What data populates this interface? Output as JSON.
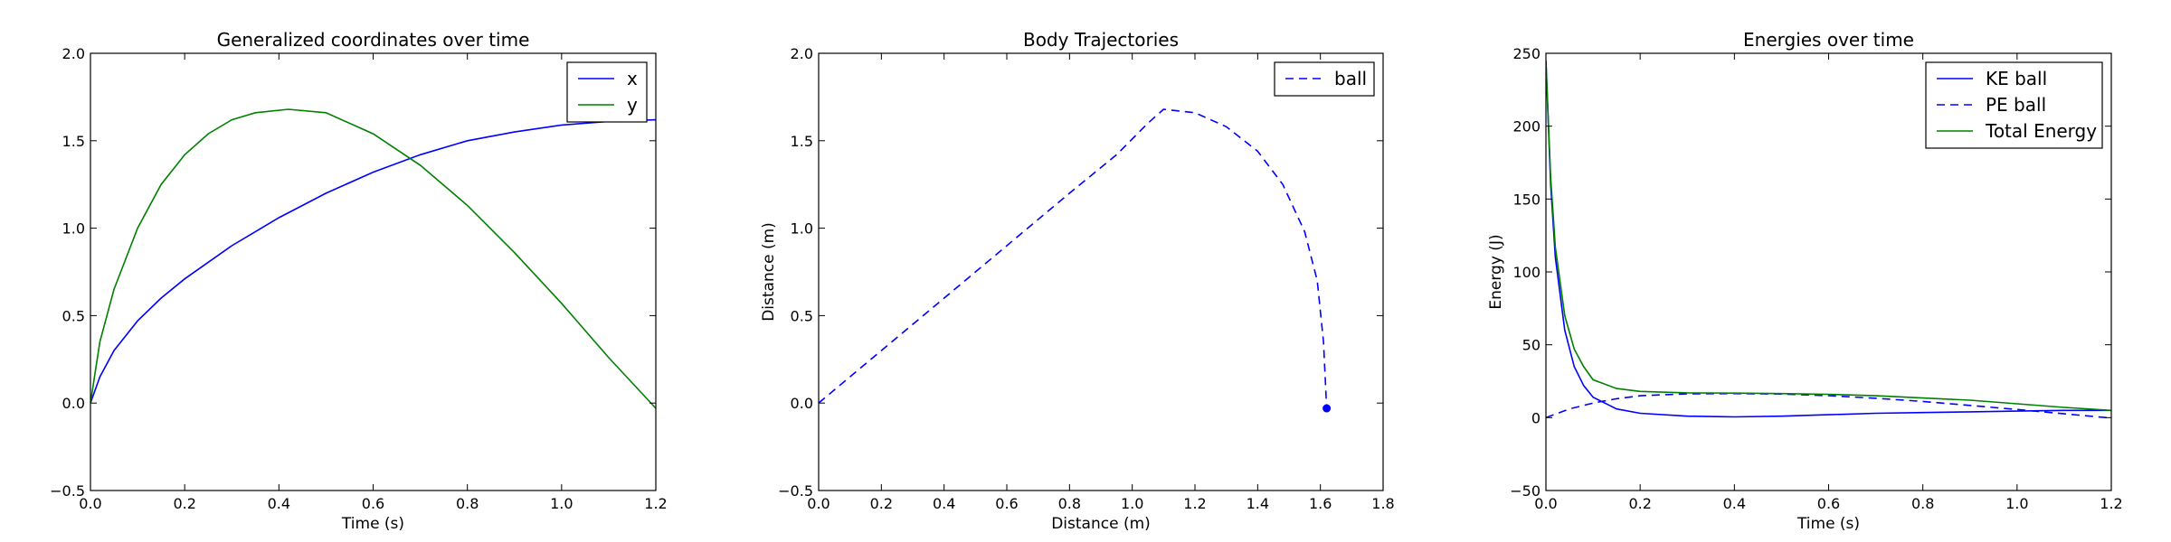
{
  "chart_data": [
    {
      "type": "line",
      "title": "Generalized coordinates over time",
      "xlabel": "Time (s)",
      "ylabel": "",
      "xlim": [
        0.0,
        1.2
      ],
      "ylim": [
        -0.5,
        2.0
      ],
      "xticks": [
        "0.0",
        "0.2",
        "0.4",
        "0.6",
        "0.8",
        "1.0",
        "1.2"
      ],
      "yticks": [
        "−0.5",
        "0.0",
        "0.5",
        "1.0",
        "1.5",
        "2.0"
      ],
      "legend_position": "top-right",
      "grid": false,
      "series": [
        {
          "name": "x",
          "color": "#0000ff",
          "style": "solid",
          "x": [
            0.0,
            0.02,
            0.05,
            0.1,
            0.15,
            0.2,
            0.3,
            0.4,
            0.5,
            0.6,
            0.7,
            0.8,
            0.9,
            1.0,
            1.1,
            1.2
          ],
          "y": [
            0.0,
            0.15,
            0.3,
            0.47,
            0.6,
            0.71,
            0.9,
            1.06,
            1.2,
            1.32,
            1.42,
            1.5,
            1.55,
            1.59,
            1.61,
            1.62
          ]
        },
        {
          "name": "y",
          "color": "#008000",
          "style": "solid",
          "x": [
            0.0,
            0.02,
            0.05,
            0.1,
            0.15,
            0.2,
            0.25,
            0.3,
            0.35,
            0.42,
            0.5,
            0.6,
            0.7,
            0.8,
            0.9,
            1.0,
            1.1,
            1.2
          ],
          "y": [
            0.0,
            0.35,
            0.65,
            1.0,
            1.25,
            1.42,
            1.54,
            1.62,
            1.66,
            1.68,
            1.66,
            1.54,
            1.36,
            1.13,
            0.86,
            0.57,
            0.26,
            -0.03
          ]
        }
      ]
    },
    {
      "type": "line",
      "title": "Body Trajectories",
      "xlabel": "Distance (m)",
      "ylabel": "Distance (m)",
      "xlim": [
        0.0,
        1.8
      ],
      "ylim": [
        -0.5,
        2.0
      ],
      "xticks": [
        "0.0",
        "0.2",
        "0.4",
        "0.6",
        "0.8",
        "1.0",
        "1.2",
        "1.4",
        "1.6",
        "1.8"
      ],
      "yticks": [
        "−0.5",
        "0.0",
        "0.5",
        "1.0",
        "1.5",
        "2.0"
      ],
      "legend_position": "top-right",
      "grid": false,
      "series": [
        {
          "name": "ball",
          "color": "#0000ff",
          "style": "dashed",
          "x": [
            0.0,
            0.2,
            0.4,
            0.6,
            0.8,
            0.95,
            1.05,
            1.1,
            1.2,
            1.3,
            1.4,
            1.48,
            1.55,
            1.59,
            1.61,
            1.62
          ],
          "y": [
            0.0,
            0.3,
            0.6,
            0.9,
            1.2,
            1.42,
            1.6,
            1.68,
            1.66,
            1.58,
            1.44,
            1.25,
            0.98,
            0.7,
            0.35,
            -0.03
          ]
        }
      ],
      "end_marker": {
        "x": 1.62,
        "y": -0.03,
        "color": "#0000ff"
      }
    },
    {
      "type": "line",
      "title": "Energies over time",
      "xlabel": "Time (s)",
      "ylabel": "Energy (J)",
      "xlim": [
        0.0,
        1.2
      ],
      "ylim": [
        -50,
        250
      ],
      "xticks": [
        "0.0",
        "0.2",
        "0.4",
        "0.6",
        "0.8",
        "1.0",
        "1.2"
      ],
      "yticks": [
        "−50",
        "0",
        "50",
        "100",
        "150",
        "200",
        "250"
      ],
      "legend_position": "top-right",
      "grid": false,
      "series": [
        {
          "name": "KE ball",
          "color": "#0000ff",
          "style": "solid",
          "x": [
            0.0,
            0.01,
            0.02,
            0.04,
            0.06,
            0.08,
            0.1,
            0.15,
            0.2,
            0.3,
            0.4,
            0.5,
            0.6,
            0.7,
            0.8,
            0.9,
            1.0,
            1.1,
            1.2
          ],
          "y": [
            245,
            160,
            110,
            60,
            35,
            22,
            14,
            6,
            3,
            1,
            0.5,
            1,
            2,
            3,
            3.5,
            4,
            4.5,
            5,
            5
          ]
        },
        {
          "name": "PE ball",
          "color": "#0000ff",
          "style": "dashed",
          "x": [
            0.0,
            0.05,
            0.1,
            0.15,
            0.2,
            0.3,
            0.4,
            0.5,
            0.6,
            0.7,
            0.8,
            0.9,
            1.0,
            1.1,
            1.2
          ],
          "y": [
            0,
            6,
            10,
            13,
            15,
            16.3,
            16.5,
            16.2,
            15.1,
            13.3,
            11.1,
            8.4,
            5.6,
            2.6,
            -0.3
          ]
        },
        {
          "name": "Total Energy",
          "color": "#008000",
          "style": "solid",
          "x": [
            0.0,
            0.01,
            0.02,
            0.04,
            0.06,
            0.08,
            0.1,
            0.15,
            0.2,
            0.3,
            0.4,
            0.5,
            0.6,
            0.7,
            0.8,
            0.9,
            1.0,
            1.1,
            1.2
          ],
          "y": [
            245,
            165,
            117,
            70,
            47,
            35,
            26,
            20,
            18,
            17,
            16.8,
            16.5,
            16,
            15,
            13.5,
            12,
            9.5,
            7,
            5
          ]
        }
      ]
    }
  ]
}
